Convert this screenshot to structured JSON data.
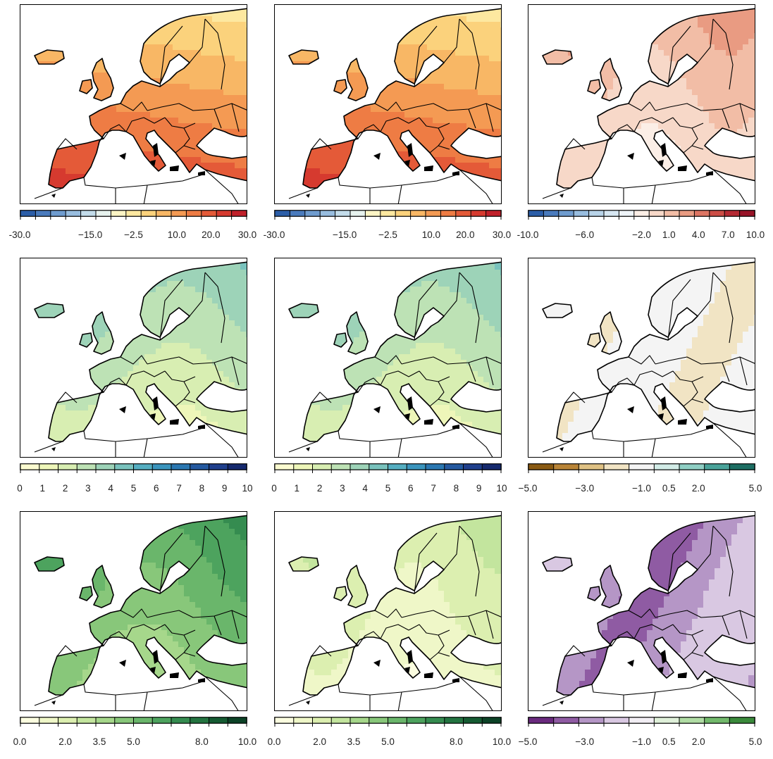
{
  "panels": [
    {
      "id": "p11",
      "row": 0,
      "col": 0,
      "scheme": "rdbu_warm",
      "legend": {
        "colors": [
          "#2c5ea8",
          "#4a7bbd",
          "#6f9ccf",
          "#98bddf",
          "#c3dcea",
          "#e7f2ee",
          "#fbf4c4",
          "#fde8a0",
          "#fbd27c",
          "#f8b765",
          "#f49a53",
          "#ee7c44",
          "#e45a38",
          "#d63a2f",
          "#c0202a"
        ],
        "labels": [
          "-30.0",
          "−15.0",
          "−2.5",
          "10.0",
          "20.0",
          "30.0"
        ]
      }
    },
    {
      "id": "p12",
      "row": 0,
      "col": 1,
      "scheme": "rdbu_warm",
      "legend": {
        "colors": [
          "#2c5ea8",
          "#4a7bbd",
          "#6f9ccf",
          "#98bddf",
          "#c3dcea",
          "#e7f2ee",
          "#fbf4c4",
          "#fde8a0",
          "#fbd27c",
          "#f8b765",
          "#f49a53",
          "#ee7c44",
          "#e45a38",
          "#d63a2f",
          "#c0202a"
        ],
        "labels": [
          "-30.0",
          "−15.0",
          "−2.5",
          "10.0",
          "20.0",
          "30.0"
        ]
      }
    },
    {
      "id": "p13",
      "row": 0,
      "col": 2,
      "scheme": "rdbu_diff",
      "legend": {
        "colors": [
          "#2c5ea8",
          "#4a7bbd",
          "#6f9ccf",
          "#98bddf",
          "#b8d3e8",
          "#d6e6f1",
          "#eef4f8",
          "#fbeee6",
          "#f7d8c8",
          "#f2bda6",
          "#e99b82",
          "#dd7563",
          "#cc4d46",
          "#b52a33",
          "#981428"
        ],
        "labels": [
          "-10.0",
          "−6.0",
          "−2.0",
          "1.0",
          "4.0",
          "7.0",
          "10.0"
        ]
      }
    },
    {
      "id": "p21",
      "row": 1,
      "col": 0,
      "scheme": "ylgnbu",
      "legend": {
        "colors": [
          "#fbfbd0",
          "#eef6b9",
          "#d8eeb2",
          "#bde2b5",
          "#9dd3b8",
          "#79c2bd",
          "#55aec1",
          "#3a94bd",
          "#2a77b1",
          "#2459a0",
          "#1f3f8c",
          "#15296e"
        ],
        "labels": [
          "0",
          "1",
          "2",
          "3",
          "4",
          "5",
          "6",
          "7",
          "8",
          "9",
          "10"
        ]
      }
    },
    {
      "id": "p22",
      "row": 1,
      "col": 1,
      "scheme": "ylgnbu",
      "legend": {
        "colors": [
          "#fbfbd0",
          "#eef6b9",
          "#d8eeb2",
          "#bde2b5",
          "#9dd3b8",
          "#79c2bd",
          "#55aec1",
          "#3a94bd",
          "#2a77b1",
          "#2459a0",
          "#1f3f8c",
          "#15296e"
        ],
        "labels": [
          "0",
          "1",
          "2",
          "3",
          "4",
          "5",
          "6",
          "7",
          "8",
          "9",
          "10"
        ]
      }
    },
    {
      "id": "p23",
      "row": 1,
      "col": 2,
      "scheme": "brbg",
      "legend": {
        "colors": [
          "#8a5a12",
          "#b98437",
          "#dfc184",
          "#f1e4c4",
          "#f4f4f4",
          "#d2ece7",
          "#8fcfc4",
          "#4aa39a",
          "#1d6e63"
        ],
        "labels": [
          "−5.0",
          "−3.0",
          "−1.0",
          "0.5",
          "2.0",
          "5.0"
        ]
      }
    },
    {
      "id": "p31",
      "row": 2,
      "col": 0,
      "scheme": "greens",
      "legend": {
        "colors": [
          "#fbfde0",
          "#eff7c8",
          "#dcefb0",
          "#c3e59e",
          "#a6d78b",
          "#88c77a",
          "#6ab66b",
          "#4da35e",
          "#358c50",
          "#237440",
          "#155b32",
          "#0c4226"
        ],
        "labels": [
          "0.0",
          "2.0",
          "3.5",
          "5.0",
          "8.0",
          "10.0"
        ]
      }
    },
    {
      "id": "p32",
      "row": 2,
      "col": 1,
      "scheme": "greens_light",
      "legend": {
        "colors": [
          "#fbfde0",
          "#eff7c8",
          "#dcefb0",
          "#c3e59e",
          "#a6d78b",
          "#88c77a",
          "#6ab66b",
          "#4da35e",
          "#358c50",
          "#237440",
          "#155b32",
          "#0c4226"
        ],
        "labels": [
          "0.0",
          "2.0",
          "3.5",
          "5.0",
          "8.0",
          "10.0"
        ]
      }
    },
    {
      "id": "p33",
      "row": 2,
      "col": 2,
      "scheme": "prgn",
      "legend": {
        "colors": [
          "#6a2a7e",
          "#8f5ba3",
          "#b596c6",
          "#d9c8e2",
          "#f2eef4",
          "#dff0d9",
          "#b0dca4",
          "#72b96b",
          "#3a8a3b"
        ],
        "labels": [
          "−5.0",
          "−3.0",
          "−1.0",
          "0.5",
          "2.0",
          "5.0"
        ]
      }
    }
  ]
}
